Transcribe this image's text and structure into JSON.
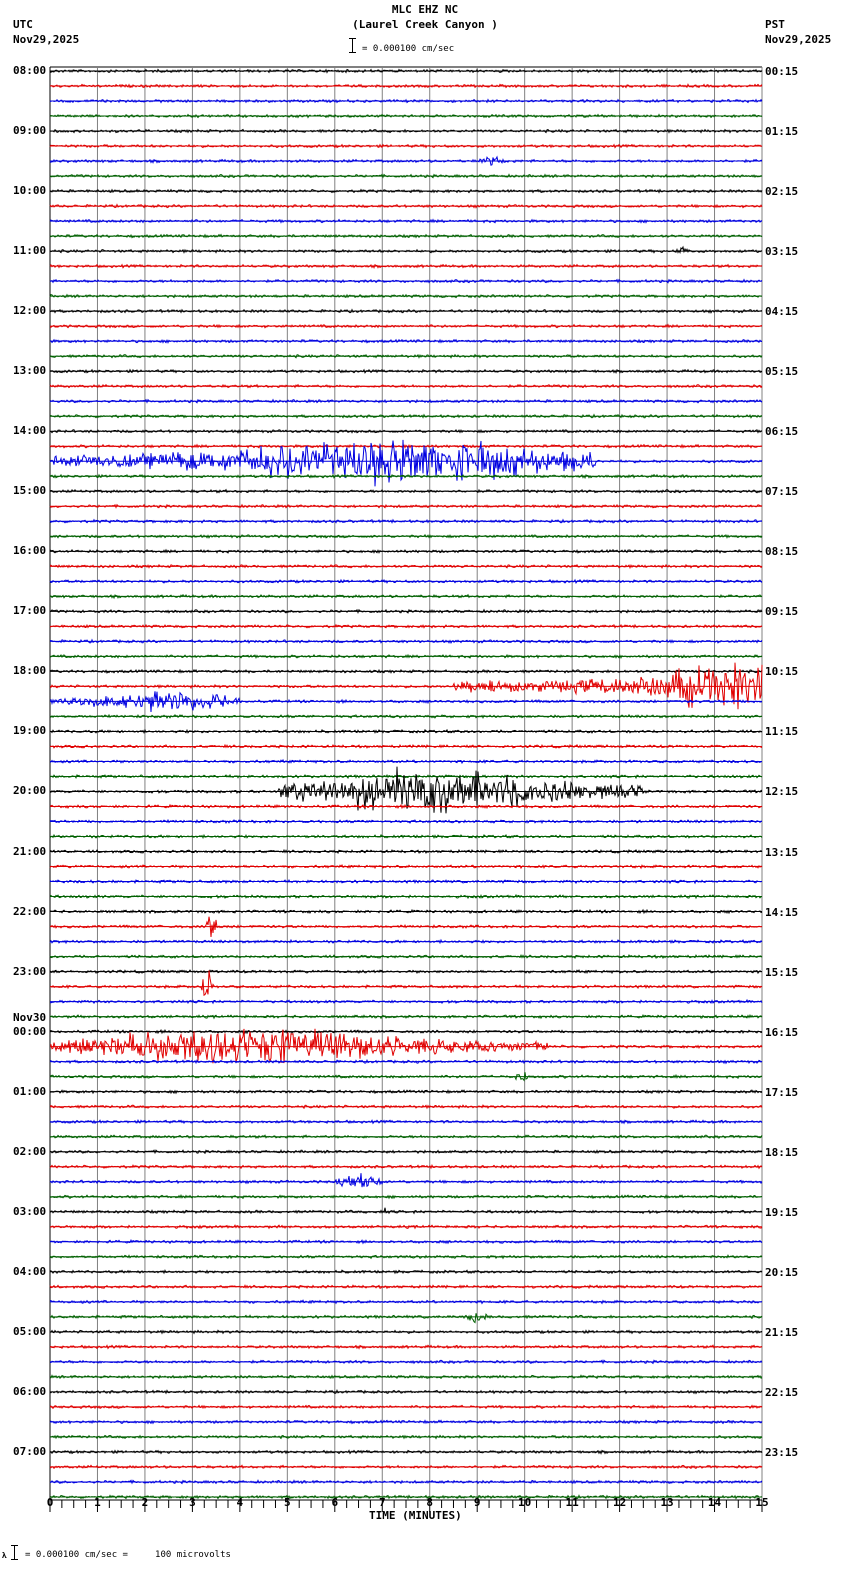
{
  "header": {
    "station_line": "MLC EHZ NC",
    "location_line": "(Laurel Creek Canyon )",
    "scale_text": "= 0.000100 cm/sec",
    "left_tz": "UTC",
    "left_date": "Nov29,2025",
    "right_tz": "PST",
    "right_date": "Nov29,2025"
  },
  "footer": {
    "scale_note": "= 0.000100 cm/sec =     100 microvolts",
    "marker": "A"
  },
  "colors": {
    "trace_cycle": [
      "#000000",
      "#e00000",
      "#0000e0",
      "#006000"
    ],
    "grid": "#808080",
    "border": "#000000"
  },
  "chart_data": {
    "type": "line",
    "title": "MLC EHZ NC (Laurel Creek Canyon )",
    "subtitle": "= 0.000100 cm/sec",
    "xlabel": "TIME (MINUTES)",
    "ylabel": "",
    "xlim": [
      0,
      15
    ],
    "x_ticks": [
      "0",
      "1",
      "2",
      "3",
      "4",
      "5",
      "6",
      "7",
      "8",
      "9",
      "10",
      "11",
      "12",
      "13",
      "14",
      "15"
    ],
    "minor_tick_step_minutes": 0.25,
    "grid": true,
    "traces_per_hour": 4,
    "trace_minutes": 15,
    "trace_count": 96,
    "left_axis_timezone": "UTC",
    "right_axis_timezone": "PST",
    "left_hour_labels": [
      "08:00",
      "09:00",
      "10:00",
      "11:00",
      "12:00",
      "13:00",
      "14:00",
      "15:00",
      "16:00",
      "17:00",
      "18:00",
      "19:00",
      "20:00",
      "21:00",
      "22:00",
      "23:00",
      "00:00",
      "01:00",
      "02:00",
      "03:00",
      "04:00",
      "05:00",
      "06:00",
      "07:00"
    ],
    "left_date_change_label": {
      "before_hour": "00:00",
      "text": "Nov30"
    },
    "right_hour_labels": [
      "00:15",
      "01:15",
      "02:15",
      "03:15",
      "04:15",
      "05:15",
      "06:15",
      "07:15",
      "08:15",
      "09:15",
      "10:15",
      "11:15",
      "12:15",
      "13:15",
      "14:15",
      "15:15",
      "16:15",
      "17:15",
      "18:15",
      "19:15",
      "20:15",
      "21:15",
      "22:15",
      "23:15"
    ],
    "scale": "0.000100 cm/sec = 100 microvolts",
    "events": [
      {
        "trace_index": 6,
        "utc": "09:30",
        "start_min": 9.0,
        "end_min": 9.6,
        "amplitude": 0.5,
        "label": "small local event"
      },
      {
        "trace_index": 12,
        "utc": "11:00",
        "start_min": 13.2,
        "end_min": 13.5,
        "amplitude": 0.4,
        "label": "small spike"
      },
      {
        "trace_index": 26,
        "utc": "14:30",
        "start_min": 0.0,
        "end_min": 11.5,
        "peak_min": 7.2,
        "amplitude": 3.0,
        "label": "regional earthquake"
      },
      {
        "trace_index": 41,
        "utc": "18:15",
        "start_min": 8.5,
        "end_min": 15.0,
        "peak_min": 14.5,
        "amplitude": 3.0,
        "label": "earthquake onset"
      },
      {
        "trace_index": 42,
        "utc": "18:30",
        "start_min": 0.0,
        "end_min": 4.0,
        "peak_min": 2.4,
        "amplitude": 1.4,
        "label": "earthquake coda"
      },
      {
        "trace_index": 48,
        "utc": "20:00",
        "start_min": 4.8,
        "end_min": 12.5,
        "peak_min": 8.1,
        "amplitude": 3.0,
        "label": "earthquake"
      },
      {
        "trace_index": 57,
        "utc": "22:15",
        "start_min": 3.3,
        "end_min": 3.5,
        "peak_min": 3.4,
        "amplitude": 7.0,
        "label": "spike"
      },
      {
        "trace_index": 61,
        "utc": "23:15",
        "start_min": 3.2,
        "end_min": 3.45,
        "peak_min": 3.3,
        "amplitude": 3.0,
        "label": "spike"
      },
      {
        "trace_index": 65,
        "utc": "00:15",
        "start_min": 0.0,
        "end_min": 10.5,
        "peak_min": 4.2,
        "amplitude": 2.4,
        "label": "noise burst"
      },
      {
        "trace_index": 67,
        "utc": "00:45",
        "start_min": 9.8,
        "end_min": 10.1,
        "amplitude": 0.7,
        "label": "small event"
      },
      {
        "trace_index": 74,
        "utc": "02:30",
        "start_min": 6.0,
        "end_min": 7.0,
        "peak_min": 6.5,
        "amplitude": 0.9,
        "label": "small local event"
      },
      {
        "trace_index": 76,
        "utc": "03:00",
        "start_min": 7.0,
        "end_min": 7.1,
        "amplitude": 0.5,
        "label": "spike"
      },
      {
        "trace_index": 83,
        "utc": "04:45",
        "start_min": 8.8,
        "end_min": 9.2,
        "peak_min": 8.9,
        "amplitude": 1.0,
        "label": "small local event"
      }
    ]
  }
}
